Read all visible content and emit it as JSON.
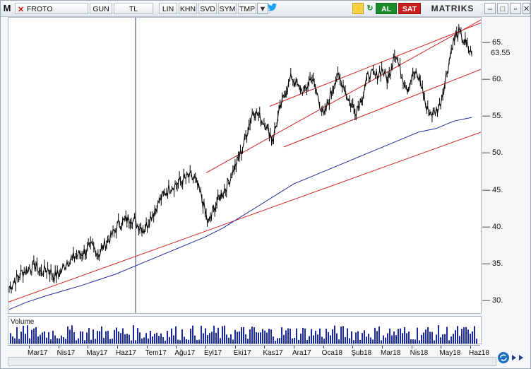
{
  "toolbar": {
    "logo_letter": "M",
    "symbol": "FROTO",
    "period": "GUN",
    "currency": "TL",
    "buttons": [
      "LIN",
      "KHN",
      "SVD",
      "SYM",
      "TMP"
    ],
    "buy_label": "AL",
    "sell_label": "SAT",
    "brand": "MATRIKS"
  },
  "colors": {
    "price": "#000000",
    "moving_average": "#1b2a9e",
    "trend_lines": "#d21f1f",
    "volume": "#1b2a9e",
    "buy": "#1a8c2a",
    "sell": "#c81e1e"
  },
  "volume_pane": {
    "label": "Volume"
  },
  "chart_data": {
    "type": "line",
    "last_value_label": "63.55",
    "ylim": [
      28.5,
      68.5
    ],
    "yticks": [
      30,
      35,
      40,
      45,
      50,
      55,
      60,
      65
    ],
    "xticks": [
      "Mar17",
      "Nis17",
      "May17",
      "Haz17",
      "Tem17",
      "Ağu17",
      "Eyl17",
      "Eki17",
      "Kas17",
      "Ara17",
      "Oca18",
      "Şub18",
      "Mar18",
      "Nis18",
      "May18",
      "Haz18"
    ],
    "series": [
      {
        "values": [
          32.0,
          33.0,
          34.0,
          34.5,
          35.0,
          34.0,
          34.5,
          33.5,
          34.0,
          35.5,
          36.0,
          36.5,
          37.0,
          37.5,
          36.5,
          38.0,
          39.0,
          40.5,
          41.0,
          41.5,
          40.5,
          39.8,
          41.5,
          43.0,
          44.5,
          45.5,
          46.0,
          46.5,
          47.0,
          46.5,
          44.0,
          40.5,
          43.0,
          44.5,
          46.0,
          48.0,
          50.0,
          53.0,
          56.0,
          55.0,
          54.0,
          52.0,
          55.5,
          58.5,
          60.5,
          59.0,
          58.5,
          60.5,
          58.0,
          55.0,
          58.0,
          60.5,
          59.5,
          57.0,
          56.0,
          58.0,
          61.0,
          60.5,
          61.5,
          60.0,
          64.0,
          61.0,
          59.0,
          61.0,
          60.0,
          56.0,
          55.5,
          56.5,
          60.5,
          65.0,
          66.5,
          65.0,
          63.5
        ]
      },
      {
        "values": [
          29.0,
          30.0,
          30.8,
          31.5,
          32.2,
          33.0,
          33.8,
          34.8,
          35.8,
          36.8,
          37.8,
          38.8,
          40.0,
          41.5,
          43.0,
          44.5,
          46.0,
          47.0,
          48.0,
          49.0,
          50.0,
          51.0,
          52.0,
          53.0,
          53.5,
          54.5,
          55.0
        ]
      }
    ]
  }
}
